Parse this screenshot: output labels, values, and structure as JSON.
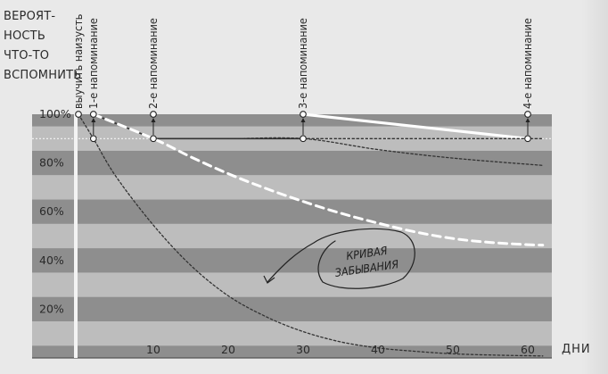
{
  "chart_data": {
    "type": "line",
    "ylabel_lines": [
      "ВЕРОЯТ-",
      "НОСТЬ",
      "ЧТО-ТО",
      "ВСПОМНИТЬ"
    ],
    "xlabel": "ДНИ",
    "xlim": [
      0,
      62
    ],
    "ylim": [
      0,
      100
    ],
    "x_ticks": [
      "10",
      "20",
      "30",
      "40",
      "50",
      "60"
    ],
    "x_tick_values": [
      10,
      20,
      30,
      40,
      50,
      60
    ],
    "y_ticks": [
      "20%",
      "40%",
      "60%",
      "80%",
      "100%"
    ],
    "y_tick_values": [
      20,
      40,
      60,
      80,
      100
    ],
    "events": [
      {
        "x": 0,
        "label": "выучить наизусть"
      },
      {
        "x": 2,
        "label": "1-е напоминание"
      },
      {
        "x": 10,
        "label": "2-е напоминание"
      },
      {
        "x": 30,
        "label": "3-е напоминание"
      },
      {
        "x": 60,
        "label": "4-е напоминание"
      }
    ],
    "series": [
      {
        "style": "dark-solid",
        "x": [
          2,
          10,
          30
        ],
        "values": [
          100,
          90,
          90
        ]
      },
      {
        "style": "white-solid",
        "x": [
          30,
          60
        ],
        "values": [
          100,
          90
        ]
      },
      {
        "style": "white-dashed",
        "x": [
          2,
          10,
          15,
          20,
          25,
          30,
          35,
          40,
          45,
          50,
          55,
          60,
          62
        ],
        "values": [
          100,
          90,
          82.5,
          75.6,
          69.6,
          64.2,
          59.4,
          55.3,
          51.7,
          49,
          47.4,
          46.5,
          46.3
        ]
      },
      {
        "style": "dark-dotted",
        "x": [
          0,
          2,
          5,
          10,
          15,
          20,
          25,
          30,
          35,
          40,
          45,
          50,
          55,
          60,
          62
        ],
        "values": [
          100,
          90,
          74.5,
          54.5,
          38,
          25.5,
          17,
          10.8,
          6.6,
          4.1,
          2.7,
          1.7,
          1.2,
          0.9,
          0.8
        ]
      },
      {
        "style": "dark-dotted",
        "x": [
          10,
          20,
          30,
          40,
          50,
          62
        ],
        "values": [
          90,
          90,
          90,
          85.5,
          82,
          79
        ]
      },
      {
        "style": "dark-dotted",
        "x": [
          30,
          40,
          50,
          60,
          62
        ],
        "values": [
          90,
          90,
          90,
          90,
          90
        ]
      }
    ],
    "annotation": {
      "lines": [
        "КРИВАЯ",
        "ЗАБЫВАНИЯ"
      ]
    }
  }
}
